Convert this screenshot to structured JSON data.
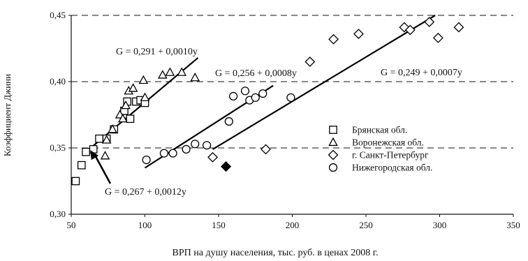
{
  "chart_data": {
    "type": "scatter",
    "title": "",
    "xlabel": "ВРП на душу населения, тыс. руб. в ценах 2008 г.",
    "ylabel": "Коэффициент Джини",
    "xlim": [
      50,
      350
    ],
    "ylim": [
      0.3,
      0.45
    ],
    "x_ticks": [
      "50",
      "100",
      "150",
      "200",
      "250",
      "300",
      "350"
    ],
    "y_ticks": [
      "0,30",
      "0,35",
      "0,40",
      "0,45"
    ],
    "gridlines": "horizontal-dashed",
    "legend_position": "right",
    "series": [
      {
        "name": "Брянская обл.",
        "marker": "square",
        "points": [
          [
            53,
            0.325
          ],
          [
            57,
            0.337
          ],
          [
            60,
            0.347
          ],
          [
            65,
            0.349
          ],
          [
            69,
            0.357
          ],
          [
            74,
            0.357
          ],
          [
            79,
            0.364
          ],
          [
            86,
            0.378
          ],
          [
            88,
            0.385
          ],
          [
            90,
            0.372
          ],
          [
            94,
            0.385
          ],
          [
            97,
            0.386
          ],
          [
            100,
            0.384
          ]
        ]
      },
      {
        "name": "Воронежская обл.",
        "marker": "triangle",
        "points": [
          [
            73,
            0.344
          ],
          [
            74,
            0.356
          ],
          [
            78,
            0.364
          ],
          [
            83,
            0.375
          ],
          [
            85,
            0.372
          ],
          [
            87,
            0.382
          ],
          [
            89,
            0.393
          ],
          [
            92,
            0.395
          ],
          [
            99,
            0.401
          ],
          [
            112,
            0.405
          ],
          [
            117,
            0.407
          ],
          [
            125,
            0.407
          ],
          [
            134,
            0.403
          ],
          [
            100,
            0.388
          ]
        ]
      },
      {
        "name": "г. Санкт-Петербург",
        "marker": "diamond",
        "points": [
          [
            146,
            0.343
          ],
          [
            155,
            0.336
          ],
          [
            182,
            0.349
          ],
          [
            212,
            0.415
          ],
          [
            228,
            0.432
          ],
          [
            245,
            0.436
          ],
          [
            276,
            0.441
          ],
          [
            280,
            0.439
          ],
          [
            293,
            0.445
          ],
          [
            299,
            0.433
          ],
          [
            313,
            0.441
          ]
        ]
      },
      {
        "name": "Нижегородская обл.",
        "marker": "circle",
        "points": [
          [
            101,
            0.341
          ],
          [
            113,
            0.346
          ],
          [
            119,
            0.346
          ],
          [
            128,
            0.349
          ],
          [
            134,
            0.353
          ],
          [
            142,
            0.352
          ],
          [
            157,
            0.37
          ],
          [
            160,
            0.389
          ],
          [
            168,
            0.393
          ],
          [
            171,
            0.386
          ],
          [
            175,
            0.388
          ],
          [
            180,
            0.391
          ],
          [
            199,
            0.388
          ]
        ]
      }
    ],
    "filled_marker": {
      "shape": "diamond",
      "point": [
        155,
        0.336
      ]
    },
    "trendlines": [
      {
        "label": "G = 0,291 + 0,0010y",
        "from": [
          60,
          0.347
        ],
        "to": [
          136,
          0.418
        ]
      },
      {
        "label": "G = 0,256 + 0,0008y",
        "from": [
          100,
          0.335
        ],
        "to": [
          187,
          0.397
        ]
      },
      {
        "label": "G = 0,249 + 0,0007y",
        "from": [
          146,
          0.349
        ],
        "to": [
          297,
          0.45
        ]
      }
    ],
    "annotations": [
      {
        "text": "G = 0,267 + 0,0012y",
        "arrow_to": [
          61,
          0.35
        ]
      }
    ]
  }
}
